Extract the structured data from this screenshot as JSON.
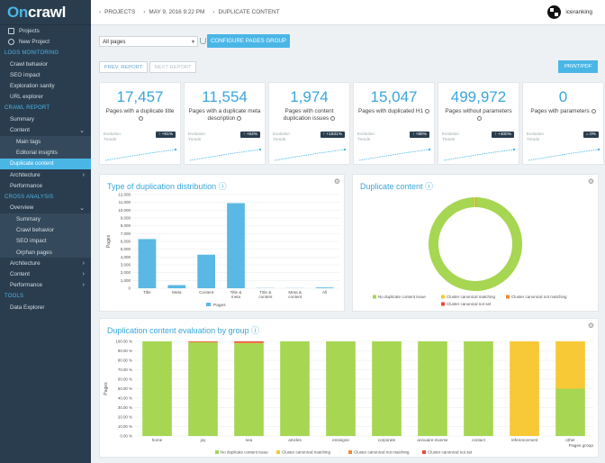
{
  "sidebar": {
    "logo_on": "On",
    "logo_rest": "crawl",
    "items": [
      {
        "type": "icon",
        "label": "Projects",
        "icon": "projects-icon"
      },
      {
        "type": "icon",
        "label": "New Project",
        "icon": "plus-circle-icon"
      },
      {
        "type": "head",
        "label": "LOGS MONITORING"
      },
      {
        "type": "item",
        "label": "Crawl behavior"
      },
      {
        "type": "item",
        "label": "SEO impact"
      },
      {
        "type": "item",
        "label": "Exploration sanity"
      },
      {
        "type": "item",
        "label": "URL explorer"
      },
      {
        "type": "head",
        "label": "CRAWL REPORT"
      },
      {
        "type": "item",
        "label": "Summary"
      },
      {
        "type": "item",
        "label": "Content",
        "chevron": "down"
      },
      {
        "type": "sub",
        "label": "Main tags"
      },
      {
        "type": "sub",
        "label": "Editorial insights"
      },
      {
        "type": "active",
        "label": "Duplicate content"
      },
      {
        "type": "item",
        "label": "Architecture",
        "chevron": "right"
      },
      {
        "type": "item",
        "label": "Performance"
      },
      {
        "type": "head",
        "label": "CROSS ANALYSIS"
      },
      {
        "type": "item",
        "label": "Overview",
        "chevron": "down"
      },
      {
        "type": "sub",
        "label": "Summary"
      },
      {
        "type": "sub",
        "label": "Crawl behavior"
      },
      {
        "type": "sub",
        "label": "SEO impact"
      },
      {
        "type": "sub",
        "label": "Orphan pages"
      },
      {
        "type": "item",
        "label": "Architecture",
        "chevron": "right"
      },
      {
        "type": "item",
        "label": "Content",
        "chevron": "right"
      },
      {
        "type": "item",
        "label": "Performance",
        "chevron": "right"
      },
      {
        "type": "head",
        "label": "TOOLS"
      },
      {
        "type": "item",
        "label": "Data Explorer"
      }
    ]
  },
  "topbar": {
    "crumbs": [
      "PROJECTS",
      "MAY 9, 2016 9:22 PM",
      "DUPLICATE CONTENT"
    ],
    "user": "iceranking"
  },
  "filters": {
    "select_value": "All pages",
    "configure_label": "CONFIGURE PAGES GROUP",
    "prev_label": "PREV. REPORT",
    "next_label": "NEXT REPORT",
    "print_label": "PRINT/PDF"
  },
  "kpis": [
    {
      "value": "17,457",
      "label": "Pages with a duplicate title",
      "badge": "+91%",
      "evo": "Evolution\nTrends"
    },
    {
      "value": "11,554",
      "label": "Pages with a duplicate meta description",
      "badge": "+64%",
      "evo": "Evolution\nTrends"
    },
    {
      "value": "1,974",
      "label": "Pages with content duplication issues",
      "badge": "+1631%",
      "evo": "Evolution\nTrends"
    },
    {
      "value": "15,047",
      "label": "Pages with duplicated H1",
      "badge": "+86%",
      "evo": "Evolution\nTrends"
    },
    {
      "value": "499,972",
      "label": "Pages without parameters",
      "badge": "+400%",
      "evo": "Evolution\nTrends"
    },
    {
      "value": "0",
      "label": "Pages with parameters",
      "badge": "0%",
      "evo": "Evolution\nTrends"
    }
  ],
  "colors": {
    "accent": "#4ab6e6",
    "sidebar": "#2a3d4e",
    "green": "#a6d652",
    "yellow": "#f7c936",
    "orange": "#f0873a",
    "red": "#e54b3c"
  },
  "panels": {
    "type_title": "Type of duplication distribution",
    "dup_title": "Duplicate content",
    "group_title": "Duplication content evaluation by group"
  },
  "chart_data": [
    {
      "type": "bar",
      "title": "Type of duplication distribution",
      "categories": [
        "Title",
        "Meta",
        "Content",
        "Title & meta",
        "Title & content",
        "Meta & content",
        "All"
      ],
      "values": [
        6300,
        400,
        4300,
        10900,
        30,
        20,
        100
      ],
      "ylabel": "Pages",
      "ylim": [
        0,
        12000
      ],
      "yticks": [
        "0",
        "1,000",
        "2,000",
        "3,000",
        "4,000",
        "5,000",
        "6,000",
        "7,000",
        "8,000",
        "9,000",
        "10,000",
        "11,000",
        "12,000"
      ],
      "legend": [
        "Pages"
      ]
    },
    {
      "type": "pie",
      "title": "Duplicate content",
      "slices": [
        {
          "name": "No duplicate content issue",
          "value": 99.4,
          "color": "#a6d652"
        },
        {
          "name": "Cluster canonical matching",
          "value": 0.3,
          "color": "#f7c936"
        },
        {
          "name": "Cluster canonical not matching",
          "value": 0.2,
          "color": "#f0873a"
        },
        {
          "name": "Cluster canonical not set",
          "value": 0.1,
          "color": "#e54b3c"
        }
      ]
    },
    {
      "type": "bar",
      "title": "Duplication content evaluation by group",
      "categories": [
        "home",
        "joy",
        "sea",
        "articles",
        "enseigne",
        "corporate",
        "annuaire-inverse",
        "contact",
        "referencement",
        "other"
      ],
      "series": [
        {
          "name": "No duplicate content issue",
          "color": "#a6d652",
          "values": [
            100,
            99,
            98,
            100,
            100,
            100,
            100,
            100,
            0,
            50
          ]
        },
        {
          "name": "Cluster canonical matching",
          "color": "#f7c936",
          "values": [
            0,
            0,
            0,
            0,
            0,
            0,
            0,
            0,
            100,
            50
          ]
        },
        {
          "name": "Cluster canonical not matching",
          "color": "#f0873a",
          "values": [
            0,
            0.5,
            1,
            0,
            0,
            0,
            0,
            0,
            0,
            0
          ]
        },
        {
          "name": "Cluster canonical not set",
          "color": "#e54b3c",
          "values": [
            0,
            0.5,
            1,
            0,
            0,
            0,
            0,
            0,
            0,
            0
          ]
        }
      ],
      "ylabel": "Pages",
      "xlabel": "Pages group",
      "ylim": [
        0,
        100
      ],
      "yticks": [
        "0.00 %",
        "10.00 %",
        "20.00 %",
        "30.00 %",
        "40.00 %",
        "50.00 %",
        "60.00 %",
        "70.00 %",
        "80.00 %",
        "90.00 %",
        "100.00 %"
      ]
    }
  ]
}
